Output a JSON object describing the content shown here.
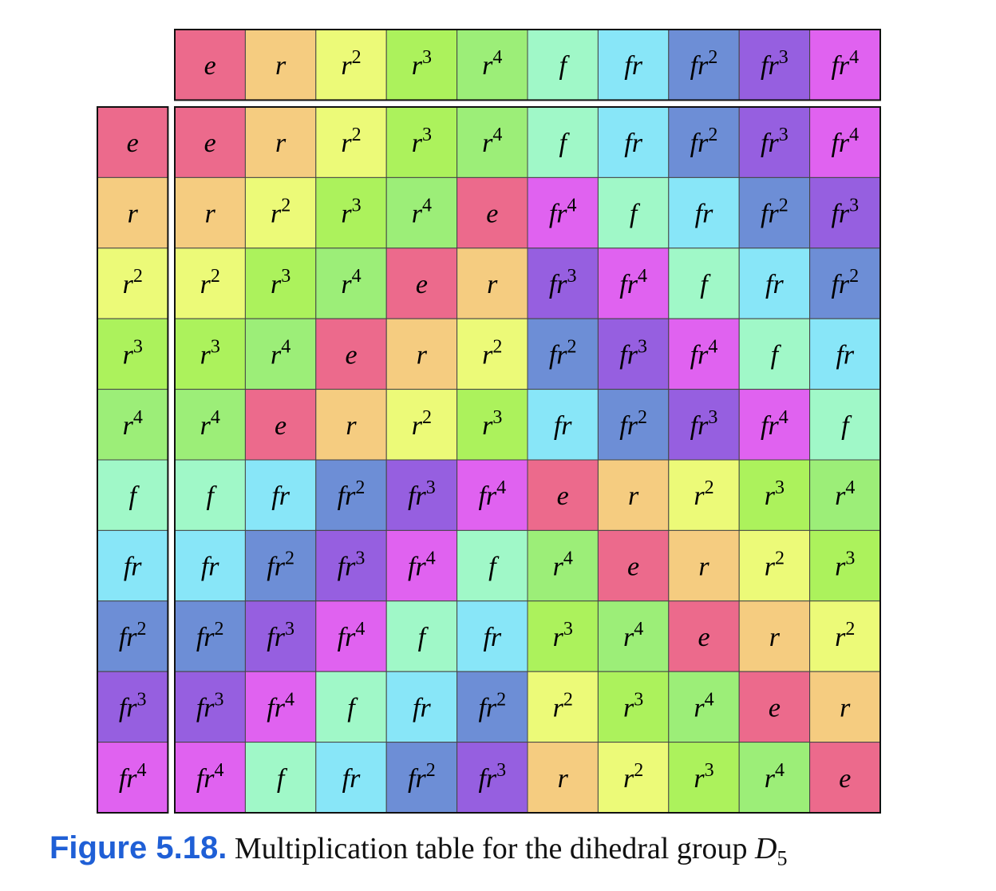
{
  "table": {
    "column_headers": [
      "e",
      "r",
      "r2",
      "r3",
      "r4",
      "f",
      "fr",
      "fr2",
      "fr3",
      "fr4"
    ],
    "rows": [
      {
        "header": "e",
        "cells": [
          "e",
          "r",
          "r2",
          "r3",
          "r4",
          "f",
          "fr",
          "fr2",
          "fr3",
          "fr4"
        ]
      },
      {
        "header": "r",
        "cells": [
          "r",
          "r2",
          "r3",
          "r4",
          "e",
          "fr4",
          "f",
          "fr",
          "fr2",
          "fr3"
        ]
      },
      {
        "header": "r2",
        "cells": [
          "r2",
          "r3",
          "r4",
          "e",
          "r",
          "fr3",
          "fr4",
          "f",
          "fr",
          "fr2"
        ]
      },
      {
        "header": "r3",
        "cells": [
          "r3",
          "r4",
          "e",
          "r",
          "r2",
          "fr2",
          "fr3",
          "fr4",
          "f",
          "fr"
        ]
      },
      {
        "header": "r4",
        "cells": [
          "r4",
          "e",
          "r",
          "r2",
          "r3",
          "fr",
          "fr2",
          "fr3",
          "fr4",
          "f"
        ]
      },
      {
        "header": "f",
        "cells": [
          "f",
          "fr",
          "fr2",
          "fr3",
          "fr4",
          "e",
          "r",
          "r2",
          "r3",
          "r4"
        ]
      },
      {
        "header": "fr",
        "cells": [
          "fr",
          "fr2",
          "fr3",
          "fr4",
          "f",
          "r4",
          "e",
          "r",
          "r2",
          "r3"
        ]
      },
      {
        "header": "fr2",
        "cells": [
          "fr2",
          "fr3",
          "fr4",
          "f",
          "fr",
          "r3",
          "r4",
          "e",
          "r",
          "r2"
        ]
      },
      {
        "header": "fr3",
        "cells": [
          "fr3",
          "fr4",
          "f",
          "fr",
          "fr2",
          "r2",
          "r3",
          "r4",
          "e",
          "r"
        ]
      },
      {
        "header": "fr4",
        "cells": [
          "fr4",
          "f",
          "fr",
          "fr2",
          "fr3",
          "r",
          "r2",
          "r3",
          "r4",
          "e"
        ]
      }
    ],
    "colors": {
      "e": "#ec6a8c",
      "r": "#f5cc80",
      "r2": "#ecfa78",
      "r3": "#acf25c",
      "r4": "#9cee78",
      "f": "#a0f8c8",
      "fr": "#88e6f8",
      "fr2": "#6d8ed6",
      "fr3": "#965fe0",
      "fr4": "#e062f0"
    }
  },
  "caption": {
    "label": "Figure 5.18.",
    "text": "Multiplication table for the dihedral group ",
    "group": "D5"
  }
}
